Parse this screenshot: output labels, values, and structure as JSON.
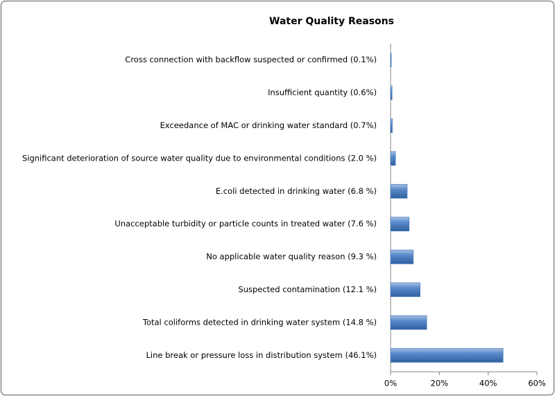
{
  "chart_data": {
    "type": "barh",
    "title": "Water Quality Reasons",
    "categories": [
      "Cross connection with backflow suspected or confirmed (0.1%)",
      "Insufficient quantity (0.6%)",
      "Exceedance of MAC or drinking water standard (0.7%)",
      "Significant deterioration of source water quality due to environmental conditions (2.0 %)",
      "E.coli detected in drinking water (6.8 %)",
      "Unacceptable turbidity or particle counts in treated water (7.6 %)",
      "No applicable water quality reason (9.3 %)",
      "Suspected contamination (12.1 %)",
      "Total coliforms detected in drinking water system (14.8 %)",
      "Line break or pressure loss in distribution system (46.1%)"
    ],
    "values": [
      0.1,
      0.6,
      0.7,
      2.0,
      6.8,
      7.6,
      9.3,
      12.1,
      14.8,
      46.1
    ],
    "color": "#4f81bd",
    "xlim": [
      0,
      60
    ],
    "xticks": [
      {
        "value": 0,
        "label": "0%"
      },
      {
        "value": 20,
        "label": "20%"
      },
      {
        "value": 40,
        "label": "40%"
      },
      {
        "value": 60,
        "label": "60%"
      }
    ]
  }
}
